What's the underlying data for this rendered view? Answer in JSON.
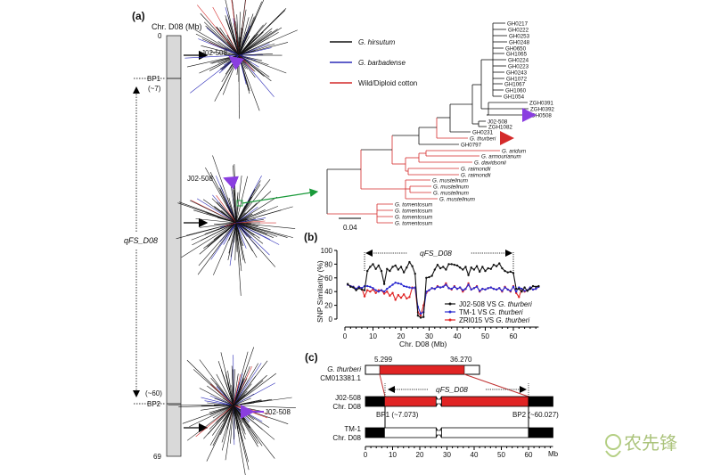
{
  "panel_a": {
    "label": "(a)",
    "axis_title": "Chr. D08 (Mb)",
    "start": "0",
    "end": "69",
    "bp1": "BP1",
    "bp1_pos": "(~7)",
    "bp2": "BP2",
    "bp2_pos": "(~60)",
    "qtl": "qFS_D08",
    "marker_labels": [
      "J02-508",
      "J02-508",
      "J02-508"
    ],
    "legend": [
      {
        "label": "G. hirsutum",
        "color": "#111111",
        "italic": true
      },
      {
        "label": "G. barbadense",
        "color": "#2b2bb8",
        "italic": true
      },
      {
        "label": "Wild/Diploid cotton",
        "color": "#d42a2a",
        "italic": false
      }
    ],
    "tree_leaves": [
      "GH0217",
      "GH0222",
      "GH0253",
      "GH0248",
      "GH0650",
      "GH1065",
      "GH0224",
      "GH0223",
      "GH0243",
      "GH1072",
      "GH1067",
      "GH1060",
      "GH1054",
      "ZGH0391",
      "ZGH0392",
      "ZGH0508",
      "J02-508",
      "ZGH1082",
      "GH0231",
      "G. thurberi",
      "GH0797",
      "G. aridum",
      "G. armourianum",
      "G. davidsonii",
      "G. raimondii",
      "G. raimondii",
      "G. mustelinum",
      "G. mustelinum",
      "G. mustelinum",
      "G. mustelinum",
      "G. tomentosum",
      "G. tomentosum",
      "G. tomentosum",
      "G. tomentosum"
    ],
    "scale_bar": "0.04"
  },
  "chart_data": {
    "type": "line",
    "panel_label": "(b)",
    "ylabel": "SNP Similarity (%)",
    "xlabel": "Chr. D08 (Mb)",
    "xlim": [
      0,
      69
    ],
    "ylim": [
      0,
      100
    ],
    "xticks": [
      "0",
      "10",
      "20",
      "30",
      "40",
      "50",
      "60"
    ],
    "yticks": [
      "0",
      "20",
      "40",
      "60",
      "80",
      "100"
    ],
    "annotation": "qFS_D08",
    "annotation_range": [
      7,
      60
    ],
    "legend_position": "bottom-right",
    "x": [
      1,
      2,
      3,
      4,
      5,
      6,
      7,
      8,
      9,
      10,
      11,
      12,
      13,
      14,
      15,
      16,
      17,
      18,
      19,
      20,
      21,
      22,
      23,
      24,
      25,
      26,
      27,
      28,
      29,
      30,
      31,
      32,
      33,
      34,
      35,
      36,
      37,
      38,
      39,
      40,
      41,
      42,
      43,
      44,
      45,
      46,
      47,
      48,
      49,
      50,
      51,
      52,
      53,
      54,
      55,
      56,
      57,
      58,
      59,
      60,
      61,
      62,
      63,
      64,
      65,
      66,
      67,
      68,
      69
    ],
    "series": [
      {
        "name": "J02-508 VS G. thurberi",
        "color": "#111111",
        "values": [
          51,
          47,
          46,
          42,
          45,
          43,
          42,
          70,
          76,
          80,
          73,
          78,
          70,
          51,
          73,
          70,
          76,
          78,
          72,
          76,
          68,
          75,
          83,
          77,
          66,
          5,
          2,
          3,
          60,
          61,
          63,
          72,
          79,
          74,
          76,
          72,
          80,
          80,
          79,
          78,
          75,
          72,
          76,
          64,
          75,
          72,
          77,
          69,
          76,
          70,
          74,
          73,
          79,
          77,
          81,
          74,
          70,
          68,
          69,
          67,
          44,
          44,
          40,
          46,
          41,
          44,
          48,
          47,
          48
        ]
      },
      {
        "name": "TM-1 VS G. thurberi",
        "color": "#2b2bd0",
        "values": [
          50,
          48,
          47,
          44,
          47,
          45,
          48,
          48,
          47,
          45,
          42,
          40,
          42,
          40,
          44,
          47,
          50,
          53,
          52,
          51,
          48,
          47,
          46,
          45,
          46,
          18,
          8,
          10,
          40,
          42,
          45,
          44,
          47,
          46,
          47,
          50,
          45,
          44,
          47,
          44,
          46,
          42,
          44,
          50,
          43,
          45,
          47,
          41,
          44,
          43,
          45,
          46,
          44,
          43,
          45,
          41,
          46,
          43,
          41,
          47,
          40,
          46,
          44,
          41,
          42,
          46,
          43,
          44,
          47
        ]
      },
      {
        "name": "ZRI015 VS G. thurberi",
        "color": "#e02424",
        "values": [
          50,
          48,
          47,
          44,
          47,
          45,
          33,
          42,
          40,
          43,
          38,
          42,
          42,
          37,
          40,
          34,
          38,
          28,
          35,
          31,
          36,
          30,
          32,
          46,
          45,
          10,
          5,
          20,
          38,
          42,
          45,
          44,
          48,
          46,
          47,
          52,
          45,
          43,
          48,
          44,
          46,
          40,
          44,
          52,
          43,
          45,
          48,
          40,
          44,
          43,
          45,
          46,
          44,
          43,
          45,
          40,
          47,
          43,
          40,
          48,
          38,
          32,
          44,
          40,
          42,
          46,
          43,
          44,
          47
        ]
      }
    ]
  },
  "panel_c": {
    "label": "(c)",
    "ref_name": "G. thurberi",
    "ref_acc": "CM013381.1",
    "ref_start": "5.299",
    "ref_end": "36.270",
    "qtl": "qFS_D08",
    "line1_name": "J02-508",
    "line1_chr": "Chr. D08",
    "bp1": "BP1 (~7.073)",
    "bp2": "BP2 (~60.027)",
    "line2_name": "TM-1",
    "line2_chr": "Chr. D08",
    "ticks": [
      "0",
      "10",
      "20",
      "30",
      "40",
      "50",
      "60"
    ],
    "unit": "Mb",
    "colors": {
      "introgression": "#e02424",
      "flank": "#000000"
    }
  },
  "watermark": {
    "text": "农先锋"
  }
}
